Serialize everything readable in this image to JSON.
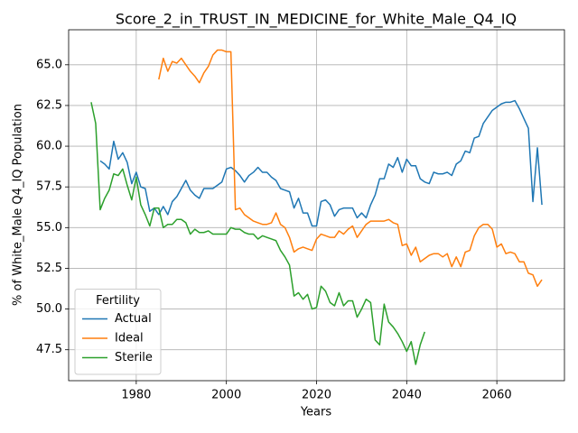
{
  "chart_data": {
    "type": "line",
    "title": "Score_2_in_TRUST_IN_MEDICINE_for_White_Male_Q4_IQ",
    "x_label": "Years",
    "y_label": "% of White_Male Q4_IQ Population",
    "xlim": [
      1965,
      2075
    ],
    "ylim": [
      45.6,
      67.15
    ],
    "xticks": [
      1980,
      2000,
      2020,
      2040,
      2060
    ],
    "yticks": [
      47.5,
      {
        "value": 50,
        "label": "50.0"
      },
      52.5,
      {
        "value": 55,
        "label": "55.0"
      },
      57.5,
      {
        "value": 60,
        "label": "60.0"
      },
      62.5,
      {
        "value": 65,
        "label": "65.0"
      }
    ],
    "grid": true,
    "legend": {
      "title": "Fertility",
      "loc": "lower left"
    },
    "series": [
      {
        "name": "Actual",
        "color": "#1f77b4",
        "x": [
          1972,
          1973,
          1974,
          1975,
          1976,
          1977,
          1978,
          1979,
          1980,
          1981,
          1982,
          1983,
          1984,
          1985,
          1986,
          1987,
          1988,
          1989,
          1990,
          1991,
          1992,
          1993,
          1994,
          1995,
          1996,
          1997,
          1998,
          1999,
          2000,
          2001,
          2002,
          2003,
          2004,
          2005,
          2006,
          2007,
          2008,
          2009,
          2010,
          2011,
          2012,
          2013,
          2014,
          2015,
          2016,
          2017,
          2018,
          2019,
          2020,
          2021,
          2022,
          2023,
          2024,
          2025,
          2026,
          2027,
          2028,
          2029,
          2030,
          2031,
          2032,
          2033,
          2034,
          2035,
          2036,
          2037,
          2038,
          2039,
          2040,
          2041,
          2042,
          2043,
          2044,
          2045,
          2046,
          2047,
          2048,
          2049,
          2050,
          2051,
          2052,
          2053,
          2054,
          2055,
          2056,
          2057,
          2058,
          2059,
          2060,
          2061,
          2062,
          2063,
          2064,
          2065,
          2066,
          2067,
          2068,
          2069,
          2070
        ],
        "values": [
          59.1,
          58.9,
          58.6,
          60.3,
          59.2,
          59.6,
          59.0,
          57.7,
          58.4,
          57.5,
          57.4,
          56.0,
          56.2,
          55.8,
          56.3,
          55.8,
          56.6,
          56.9,
          57.4,
          57.9,
          57.3,
          57.0,
          56.8,
          57.4,
          57.4,
          57.4,
          57.6,
          57.8,
          58.6,
          58.7,
          58.5,
          58.2,
          57.8,
          58.2,
          58.4,
          58.7,
          58.4,
          58.4,
          58.1,
          57.9,
          57.4,
          57.3,
          57.2,
          56.2,
          56.8,
          55.9,
          55.9,
          55.1,
          55.1,
          56.6,
          56.7,
          56.4,
          55.7,
          56.1,
          56.2,
          56.2,
          56.2,
          55.6,
          55.9,
          55.6,
          56.4,
          57.0,
          58.0,
          58.0,
          58.9,
          58.7,
          59.3,
          58.4,
          59.2,
          58.8,
          58.8,
          58.0,
          57.8,
          57.7,
          58.4,
          58.3,
          58.3,
          58.4,
          58.2,
          58.9,
          59.1,
          59.7,
          59.6,
          60.5,
          60.6,
          61.4,
          61.8,
          62.2,
          62.4,
          62.6,
          62.7,
          62.7,
          62.8,
          62.3,
          61.7,
          61.1,
          56.6,
          59.9,
          56.4
        ]
      },
      {
        "name": "Ideal",
        "color": "#ff7f0e",
        "x": [
          1985,
          1986,
          1987,
          1988,
          1989,
          1990,
          1991,
          1992,
          1993,
          1994,
          1995,
          1996,
          1997,
          1998,
          1999,
          2000,
          2001,
          2002,
          2003,
          2004,
          2005,
          2006,
          2007,
          2008,
          2009,
          2010,
          2011,
          2012,
          2013,
          2014,
          2015,
          2016,
          2017,
          2018,
          2019,
          2020,
          2021,
          2022,
          2023,
          2024,
          2025,
          2026,
          2027,
          2028,
          2029,
          2030,
          2031,
          2032,
          2033,
          2034,
          2035,
          2036,
          2037,
          2038,
          2039,
          2040,
          2041,
          2042,
          2043,
          2044,
          2045,
          2046,
          2047,
          2048,
          2049,
          2050,
          2051,
          2052,
          2053,
          2054,
          2055,
          2056,
          2057,
          2058,
          2059,
          2060,
          2061,
          2062,
          2063,
          2064,
          2065,
          2066,
          2067,
          2068,
          2069,
          2070
        ],
        "values": [
          64.1,
          65.4,
          64.6,
          65.2,
          65.1,
          65.4,
          65.0,
          64.6,
          64.3,
          63.9,
          64.5,
          64.9,
          65.6,
          65.9,
          65.9,
          65.8,
          65.8,
          56.1,
          56.2,
          55.8,
          55.6,
          55.4,
          55.3,
          55.2,
          55.2,
          55.3,
          55.9,
          55.2,
          55.0,
          54.4,
          53.5,
          53.7,
          53.8,
          53.7,
          53.6,
          54.3,
          54.6,
          54.5,
          54.4,
          54.4,
          54.8,
          54.6,
          54.9,
          55.1,
          54.4,
          54.8,
          55.2,
          55.4,
          55.4,
          55.4,
          55.4,
          55.5,
          55.3,
          55.2,
          53.9,
          54.0,
          53.3,
          53.8,
          52.9,
          53.1,
          53.3,
          53.4,
          53.4,
          53.2,
          53.4,
          52.6,
          53.2,
          52.6,
          53.5,
          53.6,
          54.5,
          55.0,
          55.2,
          55.2,
          54.9,
          53.8,
          54.0,
          53.4,
          53.5,
          53.4,
          52.9,
          52.9,
          52.2,
          52.1,
          51.4,
          51.8
        ]
      },
      {
        "name": "Sterile",
        "color": "#2ca02c",
        "x": [
          1970,
          1971,
          1972,
          1973,
          1974,
          1975,
          1976,
          1977,
          1978,
          1979,
          1980,
          1981,
          1982,
          1983,
          1984,
          1985,
          1986,
          1987,
          1988,
          1989,
          1990,
          1991,
          1992,
          1993,
          1994,
          1995,
          1996,
          1997,
          1998,
          1999,
          2000,
          2001,
          2002,
          2003,
          2004,
          2005,
          2006,
          2007,
          2008,
          2009,
          2010,
          2011,
          2012,
          2013,
          2014,
          2015,
          2016,
          2017,
          2018,
          2019,
          2020,
          2021,
          2022,
          2023,
          2024,
          2025,
          2026,
          2027,
          2028,
          2029,
          2030,
          2031,
          2032,
          2033,
          2034,
          2035,
          2036,
          2037,
          2038,
          2039,
          2040,
          2041,
          2042,
          2043,
          2044
        ],
        "values": [
          62.7,
          61.4,
          56.1,
          56.8,
          57.3,
          58.3,
          58.2,
          58.6,
          57.6,
          56.7,
          58.1,
          56.4,
          55.8,
          55.1,
          56.2,
          56.2,
          55.0,
          55.2,
          55.2,
          55.5,
          55.5,
          55.3,
          54.6,
          54.9,
          54.7,
          54.7,
          54.8,
          54.6,
          54.6,
          54.6,
          54.6,
          55.0,
          54.9,
          54.9,
          54.7,
          54.6,
          54.6,
          54.3,
          54.5,
          54.4,
          54.3,
          54.2,
          53.6,
          53.2,
          52.7,
          50.8,
          51.0,
          50.6,
          50.9,
          50.0,
          50.1,
          51.4,
          51.1,
          50.4,
          50.2,
          51.0,
          50.2,
          50.5,
          50.5,
          49.5,
          50.0,
          50.6,
          50.4,
          48.1,
          47.8,
          50.3,
          49.2,
          48.9,
          48.5,
          48.0,
          47.4,
          48.0,
          46.6,
          47.8,
          48.6
        ]
      }
    ]
  }
}
